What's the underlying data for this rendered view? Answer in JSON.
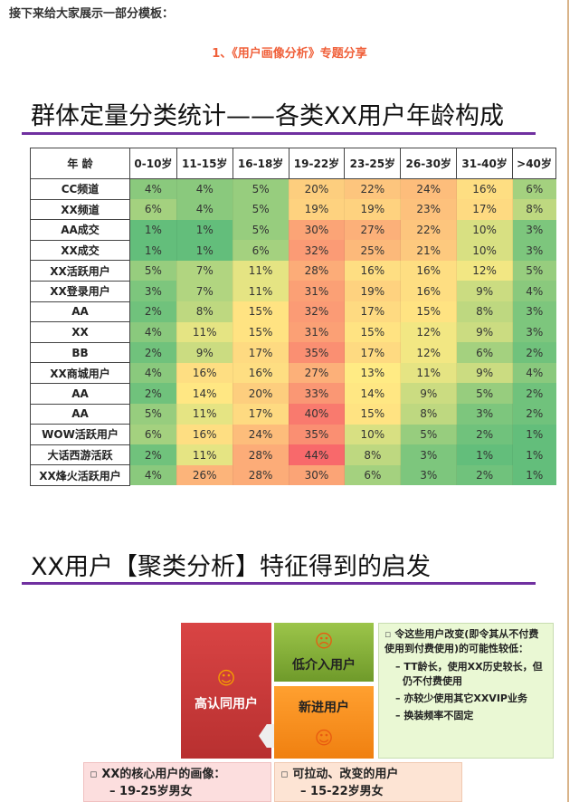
{
  "intro": "接下来给大家展示一部分模板：",
  "subtitle": "1、《用户画像分析》专题分享",
  "section1_title": "群体定量分类统计——各类XX用户年龄构成",
  "table": {
    "corner": "年 龄",
    "columns": [
      "0-10岁",
      "11-15岁",
      "16-18岁",
      "19-22岁",
      "23-25岁",
      "26-30岁",
      "31-40岁",
      ">40岁"
    ],
    "rows": [
      {
        "label": "CC频道",
        "values": [
          "4%",
          "4%",
          "5%",
          "20%",
          "22%",
          "24%",
          "16%",
          "6%"
        ]
      },
      {
        "label": "XX频道",
        "values": [
          "6%",
          "4%",
          "5%",
          "19%",
          "19%",
          "23%",
          "17%",
          "8%"
        ]
      },
      {
        "label": "AA成交",
        "values": [
          "1%",
          "1%",
          "5%",
          "30%",
          "27%",
          "22%",
          "10%",
          "3%"
        ]
      },
      {
        "label": "XX成交",
        "values": [
          "1%",
          "1%",
          "6%",
          "32%",
          "25%",
          "21%",
          "10%",
          "3%"
        ]
      },
      {
        "label": "XX活跃用户",
        "values": [
          "5%",
          "7%",
          "11%",
          "28%",
          "16%",
          "16%",
          "12%",
          "5%"
        ]
      },
      {
        "label": "XX登录用户",
        "values": [
          "3%",
          "7%",
          "11%",
          "31%",
          "19%",
          "16%",
          "9%",
          "4%"
        ]
      },
      {
        "label": "AA",
        "values": [
          "2%",
          "8%",
          "15%",
          "32%",
          "17%",
          "15%",
          "8%",
          "3%"
        ]
      },
      {
        "label": "XX",
        "values": [
          "4%",
          "11%",
          "15%",
          "31%",
          "15%",
          "12%",
          "9%",
          "3%"
        ]
      },
      {
        "label": "BB",
        "values": [
          "2%",
          "9%",
          "17%",
          "35%",
          "17%",
          "12%",
          "6%",
          "2%"
        ]
      },
      {
        "label": "XX商城用户",
        "values": [
          "4%",
          "16%",
          "16%",
          "27%",
          "13%",
          "11%",
          "9%",
          "4%"
        ]
      },
      {
        "label": "AA",
        "values": [
          "2%",
          "14%",
          "20%",
          "33%",
          "14%",
          "9%",
          "5%",
          "2%"
        ]
      },
      {
        "label": "AA",
        "values": [
          "5%",
          "11%",
          "17%",
          "40%",
          "15%",
          "8%",
          "3%",
          "2%"
        ]
      },
      {
        "label": "WOW活跃用户",
        "values": [
          "6%",
          "16%",
          "24%",
          "35%",
          "10%",
          "5%",
          "2%",
          "1%"
        ]
      },
      {
        "label": "大话西游活跃",
        "values": [
          "2%",
          "11%",
          "28%",
          "44%",
          "8%",
          "3%",
          "1%",
          "1%"
        ]
      },
      {
        "label": "XX烽火活跃用户",
        "values": [
          "4%",
          "26%",
          "28%",
          "30%",
          "6%",
          "3%",
          "2%",
          "1%"
        ]
      }
    ]
  },
  "section2_title": "XX用户【聚类分析】特征得到的启发",
  "diagram": {
    "high": "高认同用户",
    "low": "低介入用户",
    "new": "新进用户",
    "note_head": "令这些用户改变(即令其从不付费使用到付费使用)的可能性较低：",
    "note_items": [
      "TT龄长，使用XX历史较长，但仍不付费使用",
      "亦较少使用其它XXVIP业务",
      "换装频率不固定"
    ],
    "core_head": "XX的核心用户的画像：",
    "core_item": "19-25岁男女",
    "pull_head": "可拉动、改变的用户",
    "pull_item": "15-22岁男女"
  },
  "colors": {
    "accent": "#7030a0",
    "subtitle": "#f0603a"
  }
}
